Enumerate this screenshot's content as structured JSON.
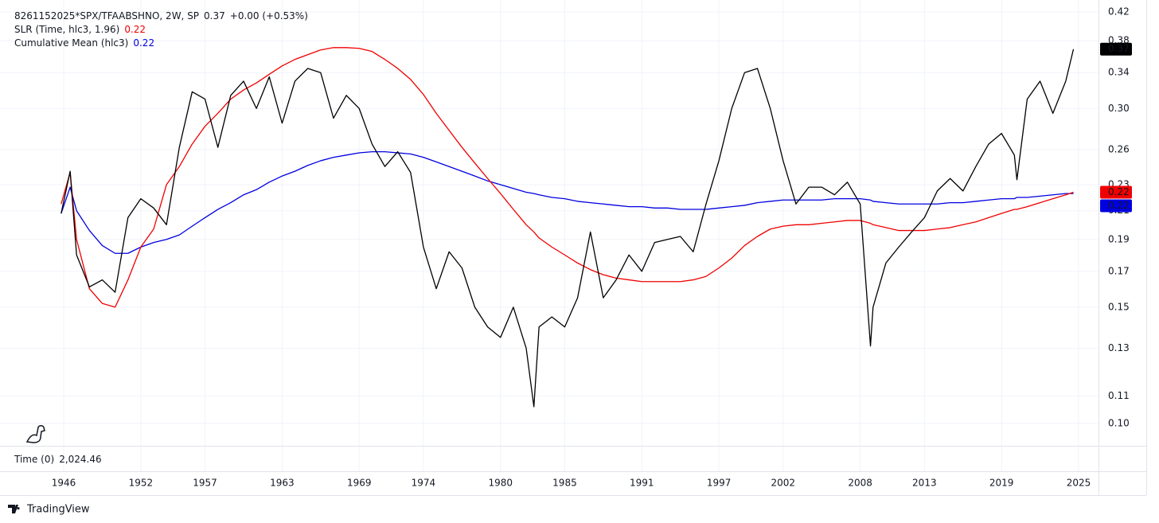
{
  "chart_data": {
    "type": "line",
    "title": "8261152025*SPX/TFAABSHNO, 2W, SP",
    "title_value": "0.37",
    "title_change": "+0.00 (+0.53%)",
    "log_scale": true,
    "grid": true,
    "x": [
      1945.8,
      1946.5,
      1947,
      1948,
      1949,
      1950,
      1951,
      1952,
      1953,
      1954,
      1955,
      1956,
      1957,
      1958,
      1959,
      1960,
      1961,
      1962,
      1963,
      1964,
      1965,
      1966,
      1967,
      1968,
      1969,
      1970,
      1971,
      1972,
      1973,
      1974,
      1975,
      1976,
      1977,
      1978,
      1979,
      1980,
      1981,
      1982,
      1982.6,
      1983,
      1984,
      1985,
      1986,
      1987,
      1988,
      1989,
      1990,
      1991,
      1992,
      1993,
      1994,
      1995,
      1996,
      1997,
      1998,
      1999,
      2000,
      2001,
      2002,
      2003,
      2004,
      2005,
      2006,
      2007,
      2008,
      2008.8,
      2009,
      2010,
      2011,
      2012,
      2013,
      2014,
      2015,
      2016,
      2017,
      2018,
      2019,
      2020,
      2020.2,
      2021,
      2022,
      2023,
      2024,
      2024.6
    ],
    "series": [
      {
        "name": "8261152025*SPX/TFAABSHNO",
        "color": "#000000",
        "last_label": "0.37",
        "values": [
          0.208,
          0.241,
          0.18,
          0.161,
          0.165,
          0.158,
          0.205,
          0.219,
          0.212,
          0.2,
          0.262,
          0.318,
          0.31,
          0.262,
          0.314,
          0.33,
          0.3,
          0.335,
          0.285,
          0.33,
          0.345,
          0.34,
          0.29,
          0.314,
          0.3,
          0.265,
          0.245,
          0.258,
          0.24,
          0.185,
          0.16,
          0.182,
          0.172,
          0.15,
          0.14,
          0.135,
          0.15,
          0.13,
          0.106,
          0.14,
          0.145,
          0.14,
          0.155,
          0.195,
          0.155,
          0.165,
          0.18,
          0.17,
          0.188,
          0.19,
          0.192,
          0.182,
          0.215,
          0.25,
          0.3,
          0.34,
          0.345,
          0.3,
          0.25,
          0.215,
          0.228,
          0.228,
          0.222,
          0.232,
          0.215,
          0.131,
          0.15,
          0.175,
          0.185,
          0.195,
          0.205,
          0.225,
          0.235,
          0.225,
          0.245,
          0.265,
          0.275,
          0.255,
          0.234,
          0.31,
          0.33,
          0.295,
          0.33,
          0.369
        ]
      },
      {
        "name": "SLR (Time, hlc3, 1.96)",
        "color": "#f00000",
        "last_label": "0.22",
        "values": [
          0.215,
          0.24,
          0.19,
          0.16,
          0.152,
          0.15,
          0.165,
          0.185,
          0.197,
          0.23,
          0.245,
          0.265,
          0.282,
          0.295,
          0.31,
          0.32,
          0.328,
          0.338,
          0.348,
          0.356,
          0.362,
          0.368,
          0.371,
          0.371,
          0.37,
          0.366,
          0.356,
          0.345,
          0.332,
          0.315,
          0.295,
          0.278,
          0.262,
          0.248,
          0.235,
          0.223,
          0.211,
          0.2,
          0.195,
          0.191,
          0.185,
          0.18,
          0.175,
          0.171,
          0.168,
          0.166,
          0.165,
          0.164,
          0.164,
          0.164,
          0.164,
          0.165,
          0.167,
          0.172,
          0.178,
          0.186,
          0.192,
          0.197,
          0.199,
          0.2,
          0.2,
          0.201,
          0.202,
          0.203,
          0.203,
          0.201,
          0.2,
          0.198,
          0.196,
          0.196,
          0.196,
          0.197,
          0.198,
          0.2,
          0.202,
          0.205,
          0.208,
          0.211,
          0.211,
          0.213,
          0.216,
          0.219,
          0.222,
          0.224
        ]
      },
      {
        "name": "Cumulative Mean (hlc3)",
        "color": "#0000e0",
        "last_label": "0.22",
        "values": [
          0.208,
          0.228,
          0.21,
          0.196,
          0.186,
          0.181,
          0.181,
          0.185,
          0.188,
          0.19,
          0.193,
          0.199,
          0.205,
          0.211,
          0.216,
          0.222,
          0.226,
          0.232,
          0.237,
          0.241,
          0.246,
          0.25,
          0.253,
          0.255,
          0.257,
          0.258,
          0.258,
          0.257,
          0.256,
          0.253,
          0.249,
          0.245,
          0.241,
          0.237,
          0.233,
          0.23,
          0.227,
          0.224,
          0.223,
          0.222,
          0.22,
          0.219,
          0.217,
          0.216,
          0.215,
          0.214,
          0.213,
          0.213,
          0.212,
          0.212,
          0.211,
          0.211,
          0.211,
          0.212,
          0.213,
          0.214,
          0.216,
          0.217,
          0.218,
          0.218,
          0.218,
          0.218,
          0.219,
          0.219,
          0.219,
          0.218,
          0.217,
          0.216,
          0.215,
          0.215,
          0.215,
          0.215,
          0.216,
          0.216,
          0.217,
          0.218,
          0.219,
          0.219,
          0.22,
          0.22,
          0.221,
          0.222,
          0.223,
          0.223
        ]
      }
    ],
    "xlim": [
      1941.04,
      2026.55
    ],
    "xticks": [
      1946,
      1952,
      1957,
      1963,
      1969,
      1974,
      1980,
      1985,
      1991,
      1997,
      2002,
      2008,
      2013,
      2019,
      2025
    ],
    "ylim": [
      0.0925,
      0.438
    ],
    "yticks": [
      {
        "value": 0.1,
        "label": "0.10"
      },
      0.11,
      0.13,
      0.15,
      0.17,
      0.19,
      0.21,
      0.23,
      0.26,
      {
        "value": 0.3,
        "label": "0.30"
      },
      0.34,
      0.38,
      0.42
    ],
    "lower_pane": {
      "label": "Time (0)",
      "value": "2,024.46"
    },
    "brand": "TradingView"
  }
}
